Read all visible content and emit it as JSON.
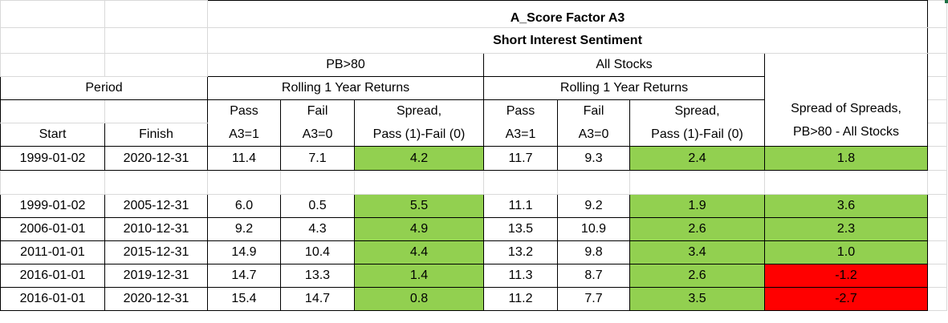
{
  "title_line1": "A_Score Factor A3",
  "title_line2": "Short Interest Sentiment",
  "groups": {
    "pb": "PB>80",
    "all": "All Stocks"
  },
  "period_label": "Period",
  "rolling_label": "Rolling 1 Year Returns",
  "col_headers": {
    "start": "Start",
    "finish": "Finish",
    "pass_line1": "Pass",
    "pass_line2": "A3=1",
    "fail_line1": "Fail",
    "fail_line2": "A3=0",
    "spread_line1": "Spread,",
    "spread_line2": "Pass (1)-Fail (0)",
    "sos_line1": "Spread of Spreads,",
    "sos_line2": "PB>80 - All Stocks"
  },
  "colors": {
    "positive": "#92d050",
    "negative": "#ff0000"
  },
  "rows": [
    {
      "start": "1999-01-02",
      "finish": "2020-12-31",
      "pb_pass": "11.4",
      "pb_fail": "7.1",
      "pb_spread": "4.2",
      "all_pass": "11.7",
      "all_fail": "9.3",
      "all_spread": "2.4",
      "sos": "1.8"
    },
    {
      "start": "1999-01-02",
      "finish": "2005-12-31",
      "pb_pass": "6.0",
      "pb_fail": "0.5",
      "pb_spread": "5.5",
      "all_pass": "11.1",
      "all_fail": "9.2",
      "all_spread": "1.9",
      "sos": "3.6"
    },
    {
      "start": "2006-01-01",
      "finish": "2010-12-31",
      "pb_pass": "9.2",
      "pb_fail": "4.3",
      "pb_spread": "4.9",
      "all_pass": "13.5",
      "all_fail": "10.9",
      "all_spread": "2.6",
      "sos": "2.3"
    },
    {
      "start": "2011-01-01",
      "finish": "2015-12-31",
      "pb_pass": "14.9",
      "pb_fail": "10.4",
      "pb_spread": "4.4",
      "all_pass": "13.2",
      "all_fail": "9.8",
      "all_spread": "3.4",
      "sos": "1.0"
    },
    {
      "start": "2016-01-01",
      "finish": "2019-12-31",
      "pb_pass": "14.7",
      "pb_fail": "13.3",
      "pb_spread": "1.4",
      "all_pass": "11.3",
      "all_fail": "8.7",
      "all_spread": "2.6",
      "sos": "-1.2"
    },
    {
      "start": "2016-01-01",
      "finish": "2020-12-31",
      "pb_pass": "15.4",
      "pb_fail": "14.7",
      "pb_spread": "0.8",
      "all_pass": "11.2",
      "all_fail": "7.7",
      "all_spread": "3.5",
      "sos": "-2.7"
    }
  ]
}
